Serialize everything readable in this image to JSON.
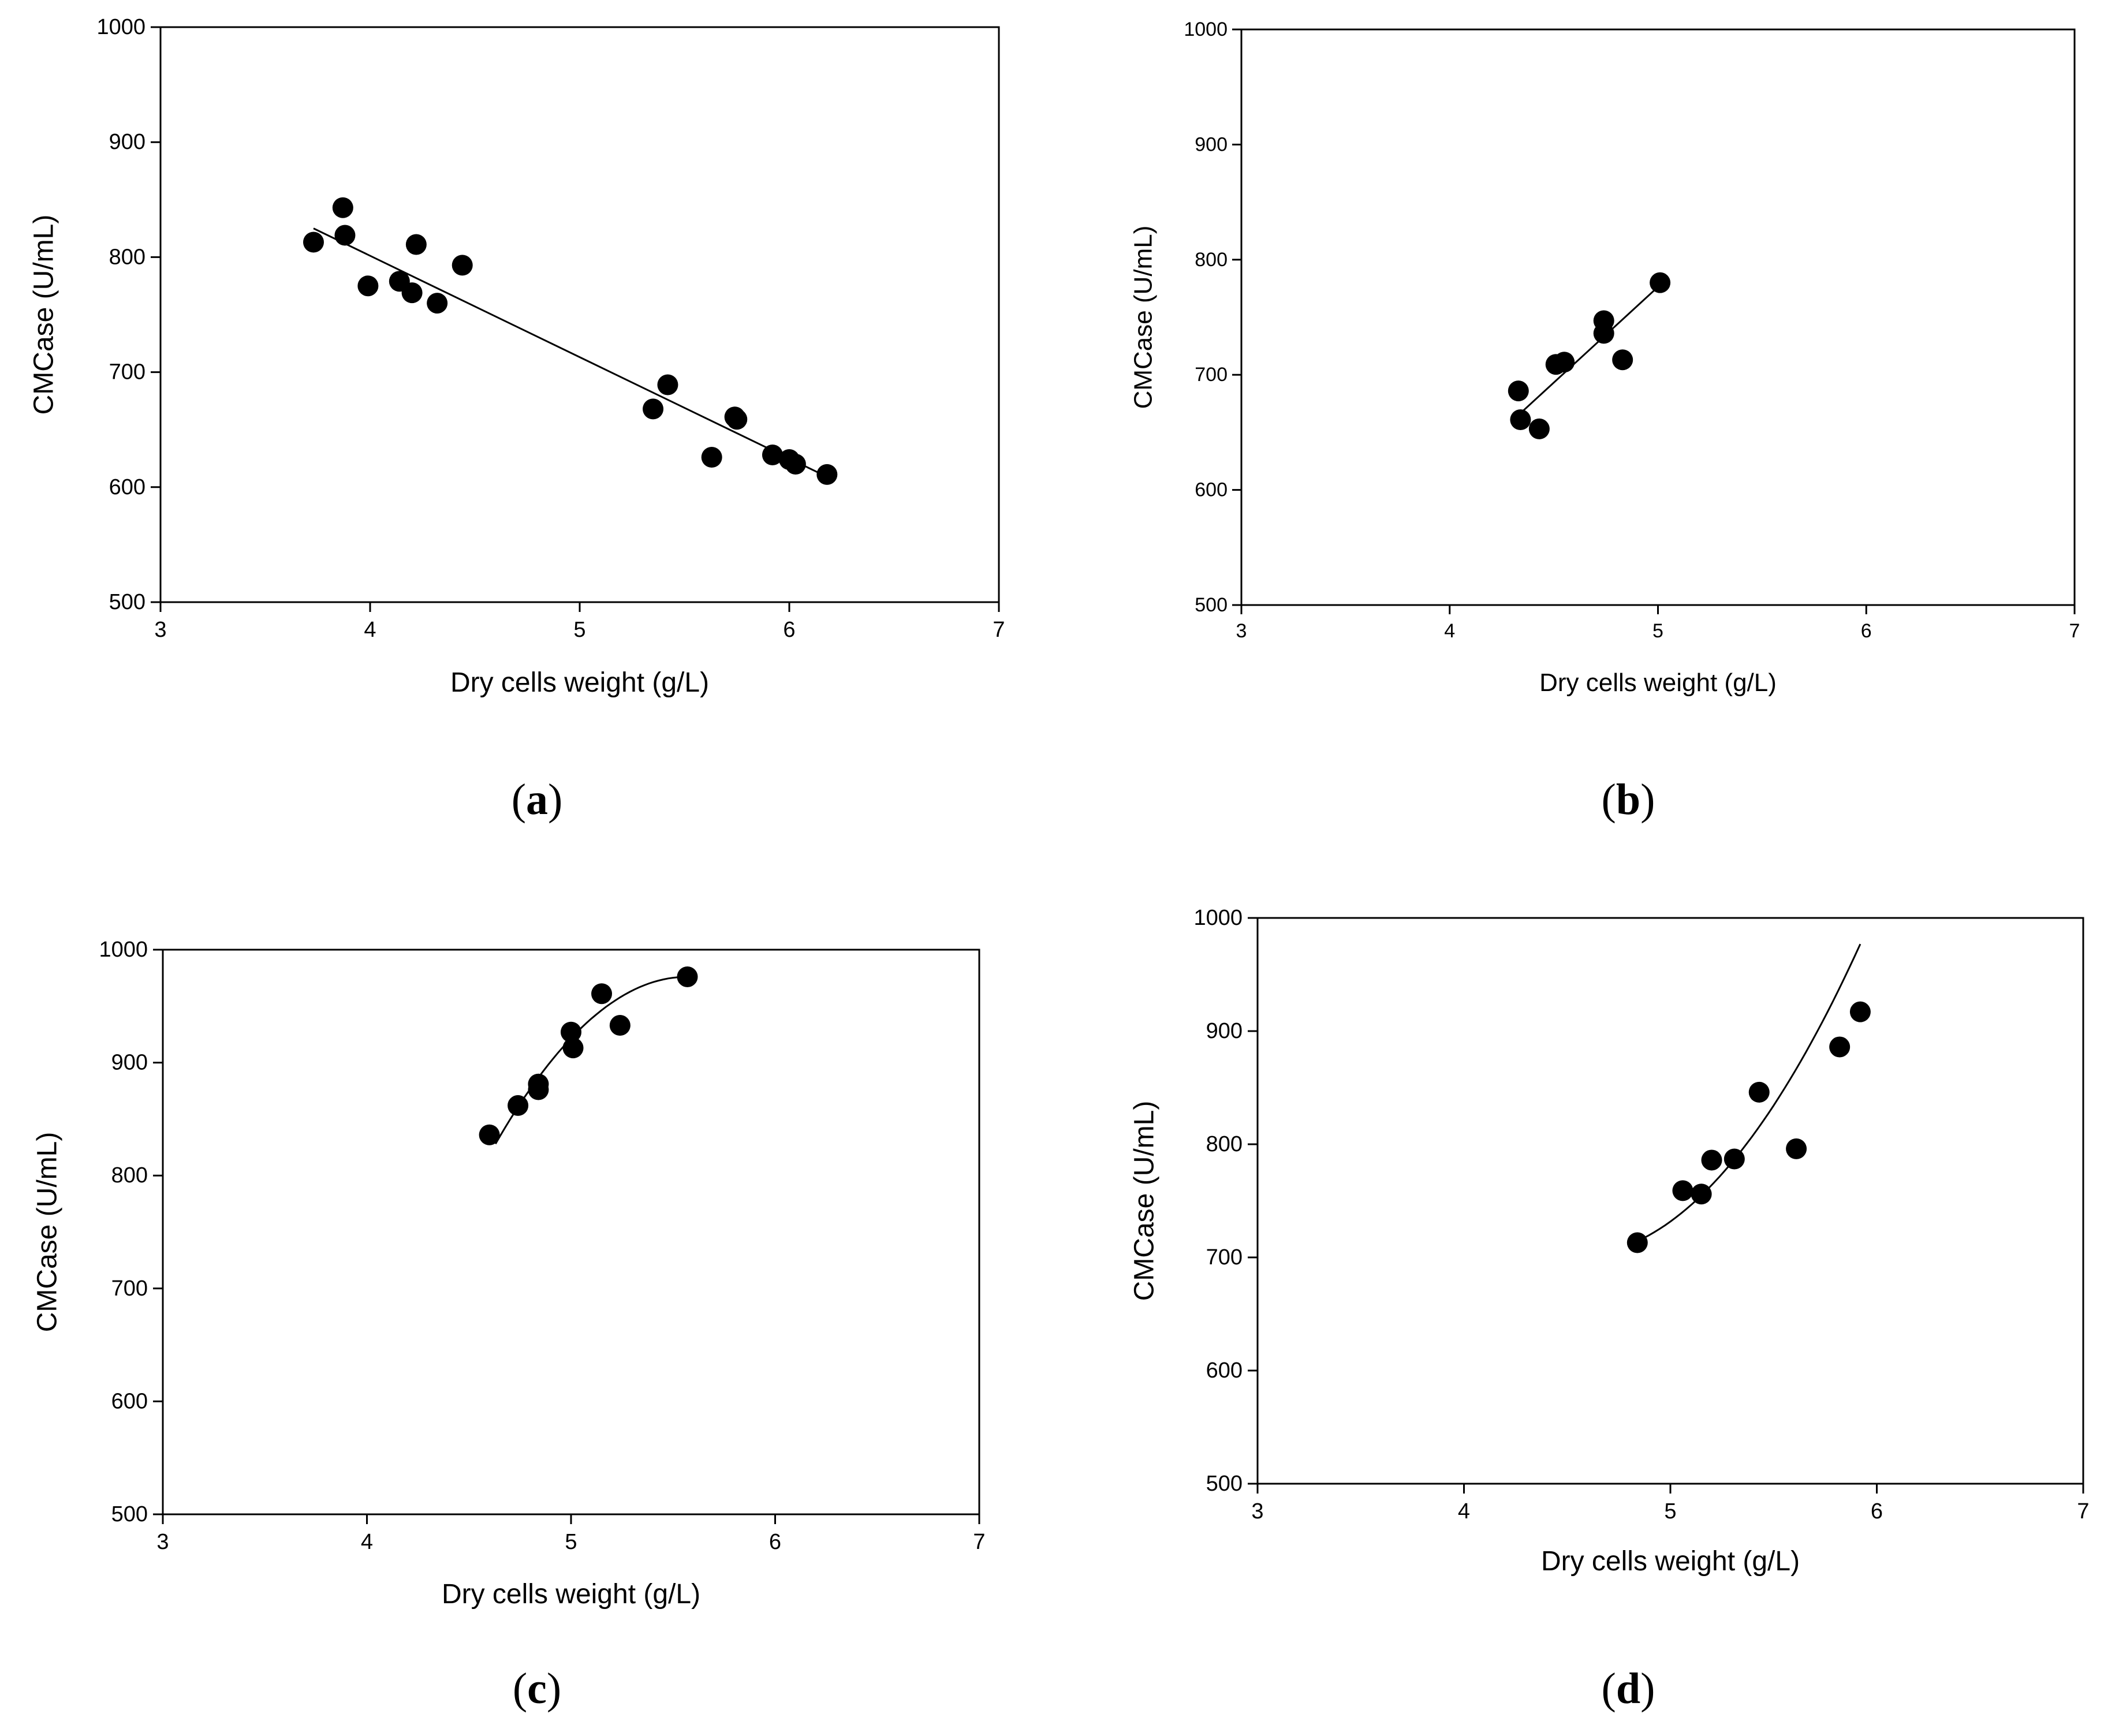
{
  "chart_data": [
    {
      "type": "scatter",
      "panel_label": "a",
      "title": "",
      "xlabel": "Dry cells weight (g/L)",
      "ylabel": "CMCase (U/mL)",
      "xlim": [
        3,
        7
      ],
      "ylim": [
        500,
        1000
      ],
      "xticks": [
        3,
        4,
        5,
        6,
        7
      ],
      "yticks": [
        500,
        600,
        700,
        800,
        900,
        1000
      ],
      "points": [
        [
          3.73,
          813
        ],
        [
          3.87,
          843
        ],
        [
          3.88,
          819
        ],
        [
          3.99,
          775
        ],
        [
          4.14,
          779
        ],
        [
          4.2,
          769
        ],
        [
          4.22,
          811
        ],
        [
          4.32,
          760
        ],
        [
          4.44,
          793
        ],
        [
          5.35,
          668
        ],
        [
          5.42,
          689
        ],
        [
          5.63,
          626
        ],
        [
          5.74,
          661
        ],
        [
          5.75,
          659
        ],
        [
          5.92,
          628
        ],
        [
          6.0,
          624
        ],
        [
          6.03,
          620
        ],
        [
          6.18,
          611
        ]
      ],
      "fit": {
        "kind": "linear",
        "x_range": [
          3.73,
          6.18
        ],
        "y_at_start": 825,
        "y_at_end": 609
      }
    },
    {
      "type": "scatter",
      "panel_label": "b",
      "title": "",
      "xlabel": "Dry cells weight (g/L)",
      "ylabel": "CMCase (U/mL)",
      "xlim": [
        3,
        7
      ],
      "ylim": [
        500,
        1000
      ],
      "xticks": [
        3,
        4,
        5,
        6,
        7
      ],
      "yticks": [
        500,
        600,
        700,
        800,
        900,
        1000
      ],
      "points": [
        [
          4.33,
          686
        ],
        [
          4.34,
          661
        ],
        [
          4.43,
          653
        ],
        [
          4.51,
          709
        ],
        [
          4.55,
          711
        ],
        [
          4.74,
          747
        ],
        [
          4.74,
          736
        ],
        [
          4.83,
          713
        ],
        [
          5.01,
          780
        ]
      ],
      "fit": {
        "kind": "linear",
        "x_range": [
          4.33,
          5.01
        ],
        "y_at_start": 665,
        "y_at_end": 778
      }
    },
    {
      "type": "scatter",
      "panel_label": "c",
      "title": "",
      "xlabel": "Dry cells weight (g/L)",
      "ylabel": "CMCase (U/mL)",
      "xlim": [
        3,
        7
      ],
      "ylim": [
        500,
        1000
      ],
      "xticks": [
        3,
        4,
        5,
        6,
        7
      ],
      "yticks": [
        500,
        600,
        700,
        800,
        900,
        1000
      ],
      "points": [
        [
          4.6,
          836
        ],
        [
          4.74,
          862
        ],
        [
          4.84,
          876
        ],
        [
          4.84,
          881
        ],
        [
          5.0,
          927
        ],
        [
          5.01,
          913
        ],
        [
          5.15,
          961
        ],
        [
          5.24,
          933
        ],
        [
          5.57,
          976
        ]
      ],
      "fit": {
        "kind": "quadratic",
        "x_range": [
          4.63,
          5.57
        ],
        "y_at_start": 828,
        "y_at_vertex": 976,
        "vertex_x": 5.57
      }
    },
    {
      "type": "scatter",
      "panel_label": "d",
      "title": "",
      "xlabel": "Dry cells weight (g/L)",
      "ylabel": "CMCase (U/mL)",
      "xlim": [
        3,
        7
      ],
      "ylim": [
        500,
        1000
      ],
      "xticks": [
        3,
        4,
        5,
        6,
        7
      ],
      "yticks": [
        500,
        600,
        700,
        800,
        900,
        1000
      ],
      "points": [
        [
          4.84,
          713
        ],
        [
          5.06,
          759
        ],
        [
          5.15,
          756
        ],
        [
          5.2,
          786
        ],
        [
          5.31,
          787
        ],
        [
          5.43,
          846
        ],
        [
          5.61,
          796
        ],
        [
          5.82,
          886
        ],
        [
          5.92,
          917
        ]
      ],
      "fit": {
        "kind": "quadratic",
        "x_range": [
          4.87,
          5.92
        ],
        "y_at_start": 717,
        "y_at_vertex": 702,
        "vertex_x": 4.55
      }
    }
  ]
}
